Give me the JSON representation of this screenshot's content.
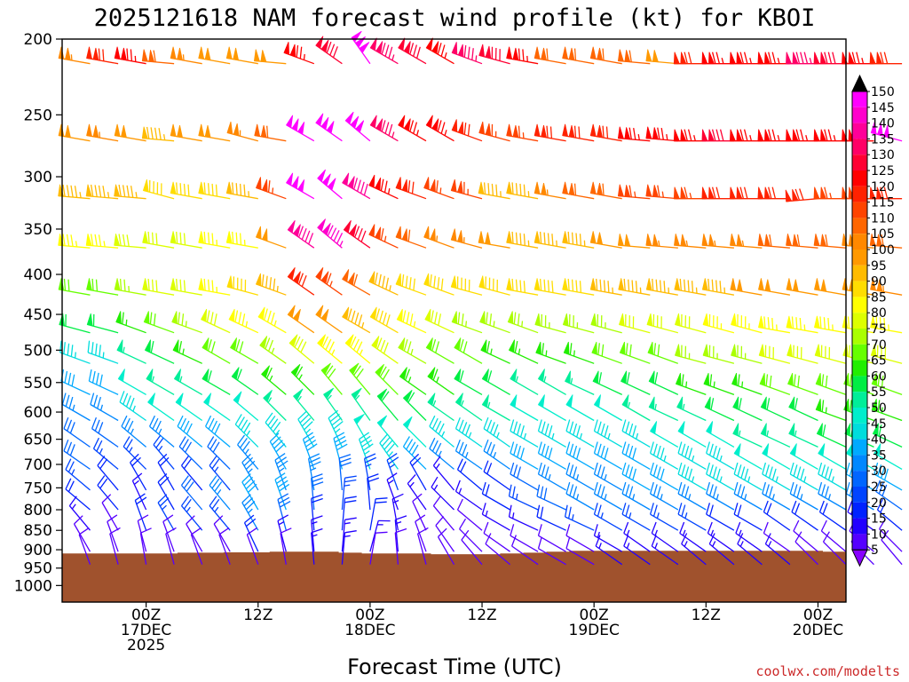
{
  "chart_data": {
    "type": "wind-barb-profile",
    "title": "2025121618 NAM forecast wind profile (kt) for KBOI",
    "xlabel": "Forecast Time (UTC)",
    "ylabel": "",
    "credit": "coolwx.com/modelts",
    "y_axis": {
      "scale": "log",
      "reversed": true,
      "range": [
        200,
        1050
      ],
      "ticks": [
        200,
        250,
        300,
        350,
        400,
        450,
        500,
        550,
        600,
        650,
        700,
        750,
        800,
        850,
        900,
        950,
        1000
      ]
    },
    "x_axis": {
      "range_hours": [
        -3,
        81
      ],
      "ticks": [
        {
          "hour": 6,
          "lines": [
            "00Z",
            "17DEC",
            "2025"
          ]
        },
        {
          "hour": 18,
          "lines": [
            "12Z"
          ]
        },
        {
          "hour": 30,
          "lines": [
            "00Z",
            "18DEC"
          ]
        },
        {
          "hour": 42,
          "lines": [
            "12Z"
          ]
        },
        {
          "hour": 54,
          "lines": [
            "00Z",
            "19DEC"
          ]
        },
        {
          "hour": 66,
          "lines": [
            "12Z"
          ]
        },
        {
          "hour": 78,
          "lines": [
            "00Z",
            "20DEC"
          ]
        }
      ]
    },
    "time_step_hours": 3,
    "levels_hpa": [
      215,
      270,
      320,
      370,
      425,
      475,
      520,
      570,
      615,
      665,
      710,
      755,
      800,
      850,
      905,
      940
    ],
    "colorbar": {
      "labels": [
        "150",
        "145",
        "140",
        "135",
        "130",
        "125",
        "120",
        "115",
        "110",
        "105",
        "100",
        "95",
        "90",
        "85",
        "80",
        "75",
        "70",
        "65",
        "60",
        "55",
        "50",
        "45",
        "40",
        "35",
        "30",
        "25",
        "20",
        "15",
        "10",
        "5"
      ],
      "colors": [
        "#ff00ff",
        "#ff00cc",
        "#ff0099",
        "#ff0066",
        "#ff0033",
        "#ff0000",
        "#ff2200",
        "#ff4400",
        "#ff6600",
        "#ff8800",
        "#ff9900",
        "#ffbb00",
        "#ffdd00",
        "#ffff00",
        "#ddff00",
        "#aaff00",
        "#66ff00",
        "#22ee00",
        "#00ee44",
        "#00ee99",
        "#00eecc",
        "#00dddd",
        "#00aaff",
        "#0088ff",
        "#0066ff",
        "#0044ff",
        "#0022ff",
        "#2200ff",
        "#5500ff",
        "#8800ff"
      ],
      "max_color": "#000000"
    },
    "terrain": {
      "color": "#a0522d",
      "surface_pressure_hpa": [
        910,
        910,
        910,
        910,
        910,
        908,
        908,
        907,
        907,
        905,
        905,
        905,
        908,
        910,
        910,
        910,
        912,
        912,
        912,
        910,
        908,
        905,
        903,
        903,
        903,
        903,
        903,
        903,
        903,
        903,
        903,
        903,
        903,
        905
      ]
    },
    "series_speed_kt": [
      [
        105,
        120,
        125,
        110,
        105,
        100,
        100,
        100,
        125,
        130,
        150,
        135,
        130,
        125,
        135,
        130,
        125,
        110,
        110,
        110,
        110,
        100,
        120,
        125,
        125,
        125,
        135,
        130,
        125,
        120
      ],
      [
        100,
        105,
        100,
        95,
        100,
        100,
        105,
        110,
        150,
        150,
        150,
        135,
        125,
        125,
        120,
        115,
        115,
        120,
        120,
        120,
        125,
        125,
        125,
        130,
        125,
        125,
        125,
        125,
        125,
        150
      ],
      [
        95,
        95,
        95,
        90,
        90,
        90,
        95,
        115,
        150,
        150,
        140,
        125,
        120,
        115,
        115,
        95,
        95,
        105,
        110,
        110,
        115,
        115,
        115,
        120,
        120,
        120,
        120,
        115,
        115,
        120
      ],
      [
        85,
        85,
        80,
        80,
        80,
        85,
        85,
        100,
        140,
        145,
        130,
        115,
        110,
        105,
        105,
        100,
        95,
        95,
        95,
        100,
        100,
        105,
        105,
        105,
        105,
        110,
        110,
        110,
        105,
        110
      ],
      [
        70,
        70,
        75,
        80,
        80,
        85,
        90,
        95,
        120,
        115,
        110,
        95,
        90,
        90,
        90,
        90,
        90,
        90,
        90,
        95,
        95,
        95,
        95,
        95,
        100,
        100,
        100,
        100,
        100,
        105
      ],
      [
        60,
        60,
        65,
        70,
        75,
        80,
        85,
        85,
        100,
        100,
        95,
        90,
        85,
        80,
        75,
        75,
        75,
        75,
        75,
        75,
        80,
        80,
        80,
        85,
        85,
        85,
        85,
        85,
        85,
        85
      ],
      [
        45,
        45,
        55,
        60,
        65,
        70,
        70,
        75,
        80,
        85,
        85,
        80,
        75,
        70,
        70,
        65,
        65,
        65,
        65,
        70,
        70,
        70,
        75,
        75,
        75,
        80,
        80,
        80,
        80,
        80
      ],
      [
        40,
        40,
        50,
        55,
        55,
        60,
        60,
        65,
        65,
        70,
        70,
        70,
        65,
        65,
        60,
        60,
        55,
        55,
        55,
        60,
        60,
        60,
        65,
        65,
        65,
        70,
        70,
        70,
        70,
        70
      ],
      [
        35,
        35,
        45,
        50,
        50,
        50,
        50,
        55,
        55,
        55,
        55,
        60,
        60,
        55,
        55,
        55,
        50,
        50,
        50,
        50,
        55,
        55,
        55,
        60,
        60,
        60,
        60,
        65,
        65,
        65
      ],
      [
        30,
        30,
        35,
        35,
        40,
        40,
        45,
        45,
        45,
        45,
        50,
        50,
        50,
        45,
        45,
        45,
        45,
        45,
        45,
        45,
        45,
        50,
        50,
        50,
        55,
        55,
        55,
        60,
        60,
        60
      ],
      [
        30,
        25,
        25,
        25,
        30,
        30,
        35,
        40,
        40,
        40,
        45,
        45,
        40,
        35,
        35,
        35,
        40,
        40,
        40,
        40,
        40,
        45,
        45,
        45,
        50,
        50,
        50,
        50,
        50,
        50
      ],
      [
        25,
        20,
        20,
        20,
        20,
        25,
        35,
        35,
        35,
        30,
        25,
        25,
        20,
        15,
        20,
        20,
        30,
        35,
        35,
        35,
        40,
        40,
        45,
        45,
        45,
        45,
        45,
        45,
        40,
        40
      ],
      [
        20,
        20,
        15,
        20,
        30,
        35,
        40,
        40,
        30,
        25,
        20,
        15,
        15,
        15,
        15,
        20,
        25,
        30,
        35,
        35,
        35,
        35,
        35,
        35,
        35,
        35,
        35,
        35,
        35,
        30
      ],
      [
        15,
        10,
        20,
        25,
        25,
        25,
        35,
        30,
        20,
        20,
        20,
        15,
        10,
        10,
        10,
        15,
        15,
        20,
        25,
        25,
        25,
        25,
        25,
        20,
        20,
        20,
        20,
        20,
        15,
        20
      ],
      [
        10,
        10,
        10,
        10,
        10,
        10,
        20,
        15,
        15,
        15,
        15,
        15,
        10,
        10,
        10,
        10,
        10,
        10,
        10,
        15,
        15,
        15,
        15,
        15,
        15,
        10,
        10,
        10,
        10,
        10
      ],
      [
        10,
        10,
        10,
        10,
        10,
        10,
        10,
        10,
        15,
        15,
        10,
        10,
        10,
        10,
        10,
        10,
        10,
        10,
        10,
        15,
        15,
        15,
        15,
        15,
        15,
        15,
        10,
        10,
        10,
        10
      ]
    ],
    "series_dir_deg": [
      [
        280,
        280,
        280,
        275,
        280,
        280,
        280,
        275,
        290,
        305,
        325,
        300,
        300,
        300,
        290,
        285,
        280,
        280,
        280,
        280,
        275,
        275,
        270,
        270,
        270,
        270,
        270,
        270,
        270,
        270
      ],
      [
        280,
        280,
        280,
        275,
        280,
        280,
        285,
        280,
        300,
        305,
        310,
        300,
        300,
        300,
        290,
        285,
        280,
        280,
        280,
        280,
        275,
        275,
        270,
        270,
        270,
        270,
        270,
        270,
        270,
        285
      ],
      [
        275,
        275,
        275,
        285,
        280,
        280,
        280,
        290,
        300,
        310,
        300,
        295,
        290,
        290,
        285,
        280,
        280,
        280,
        280,
        280,
        275,
        275,
        270,
        270,
        270,
        270,
        265,
        270,
        270,
        270
      ],
      [
        275,
        275,
        275,
        280,
        280,
        280,
        280,
        290,
        305,
        310,
        305,
        295,
        290,
        290,
        285,
        280,
        280,
        280,
        280,
        280,
        275,
        275,
        275,
        275,
        275,
        275,
        275,
        275,
        275,
        275
      ],
      [
        280,
        280,
        280,
        280,
        280,
        280,
        285,
        290,
        305,
        305,
        300,
        295,
        290,
        290,
        285,
        285,
        280,
        280,
        280,
        280,
        280,
        280,
        280,
        280,
        280,
        280,
        280,
        280,
        280,
        280
      ],
      [
        285,
        285,
        290,
        290,
        290,
        295,
        295,
        300,
        305,
        305,
        300,
        300,
        295,
        295,
        290,
        290,
        290,
        285,
        285,
        285,
        285,
        285,
        285,
        285,
        285,
        280,
        280,
        280,
        280,
        280
      ],
      [
        290,
        290,
        295,
        295,
        295,
        300,
        300,
        305,
        310,
        310,
        310,
        305,
        300,
        300,
        300,
        295,
        295,
        290,
        290,
        290,
        290,
        290,
        285,
        285,
        285,
        285,
        285,
        285,
        285,
        285
      ],
      [
        295,
        295,
        300,
        300,
        300,
        300,
        305,
        310,
        315,
        320,
        320,
        315,
        305,
        305,
        300,
        300,
        300,
        300,
        295,
        295,
        295,
        295,
        290,
        290,
        290,
        290,
        290,
        290,
        290,
        290
      ],
      [
        300,
        300,
        305,
        305,
        305,
        305,
        310,
        315,
        320,
        325,
        325,
        320,
        315,
        305,
        305,
        300,
        300,
        300,
        300,
        300,
        300,
        295,
        295,
        295,
        295,
        295,
        295,
        290,
        290,
        290
      ],
      [
        305,
        305,
        310,
        310,
        310,
        310,
        315,
        320,
        330,
        335,
        330,
        320,
        315,
        310,
        305,
        305,
        300,
        300,
        300,
        300,
        300,
        300,
        300,
        300,
        295,
        295,
        295,
        295,
        295,
        295
      ],
      [
        305,
        310,
        315,
        320,
        315,
        315,
        320,
        330,
        340,
        345,
        340,
        325,
        315,
        310,
        305,
        305,
        300,
        300,
        300,
        300,
        300,
        300,
        300,
        300,
        300,
        300,
        300,
        300,
        300,
        300
      ],
      [
        310,
        320,
        330,
        330,
        320,
        320,
        330,
        340,
        350,
        355,
        350,
        340,
        330,
        320,
        310,
        305,
        300,
        300,
        300,
        300,
        300,
        300,
        300,
        300,
        300,
        300,
        300,
        300,
        300,
        300
      ],
      [
        310,
        320,
        335,
        330,
        320,
        320,
        330,
        340,
        355,
        5,
        355,
        340,
        325,
        315,
        305,
        300,
        295,
        295,
        300,
        300,
        300,
        300,
        300,
        300,
        300,
        300,
        300,
        300,
        300,
        305
      ],
      [
        320,
        330,
        340,
        330,
        320,
        320,
        330,
        345,
        355,
        5,
        10,
        350,
        335,
        320,
        310,
        300,
        295,
        295,
        295,
        300,
        300,
        300,
        300,
        300,
        300,
        305,
        305,
        305,
        305,
        310
      ],
      [
        330,
        340,
        345,
        340,
        330,
        330,
        335,
        345,
        355,
        5,
        15,
        355,
        340,
        325,
        315,
        305,
        300,
        300,
        300,
        300,
        305,
        305,
        305,
        305,
        305,
        305,
        310,
        310,
        310,
        315
      ],
      [
        340,
        345,
        350,
        345,
        340,
        340,
        340,
        350,
        355,
        5,
        10,
        355,
        345,
        330,
        320,
        310,
        305,
        300,
        300,
        305,
        305,
        305,
        310,
        310,
        310,
        310,
        315,
        315,
        315,
        320
      ]
    ]
  }
}
